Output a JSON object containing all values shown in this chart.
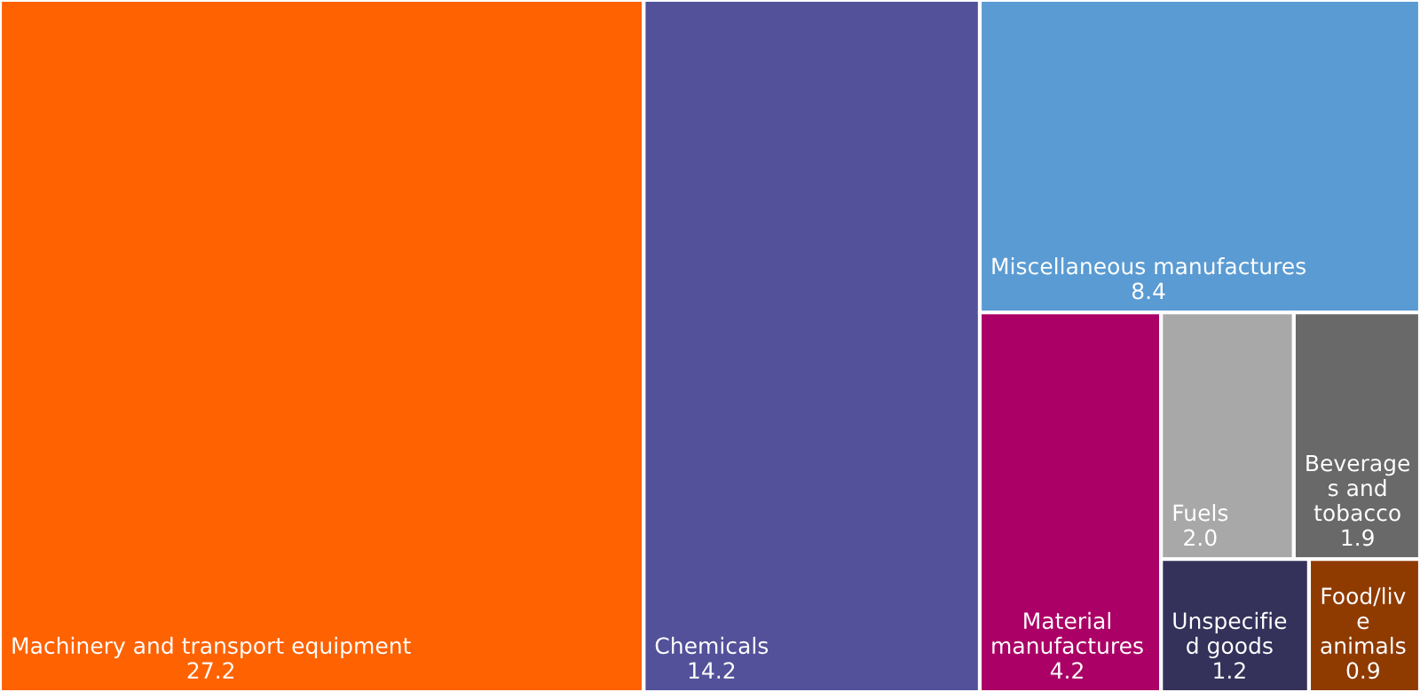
{
  "chart_data": {
    "type": "other",
    "categories": [
      "Machinery and transport equipment",
      "Chemicals",
      "Miscellaneous manufactures",
      "Material manufactures",
      "Fuels",
      "Beverages and tobacco",
      "Unspecified goods",
      "Food/live animals"
    ],
    "values": [
      27.2,
      14.2,
      8.4,
      4.2,
      2.0,
      1.9,
      1.2,
      0.9
    ],
    "colors": [
      "#ff6200",
      "#525199",
      "#5a9bd3",
      "#ab0066",
      "#a8a8a8",
      "#696969",
      "#34315a",
      "#8f3b00"
    ],
    "value_labels": [
      "27.2",
      "14.2",
      "8.4",
      "4.2",
      "2.0",
      "1.9",
      "1.2",
      "0.9"
    ]
  }
}
